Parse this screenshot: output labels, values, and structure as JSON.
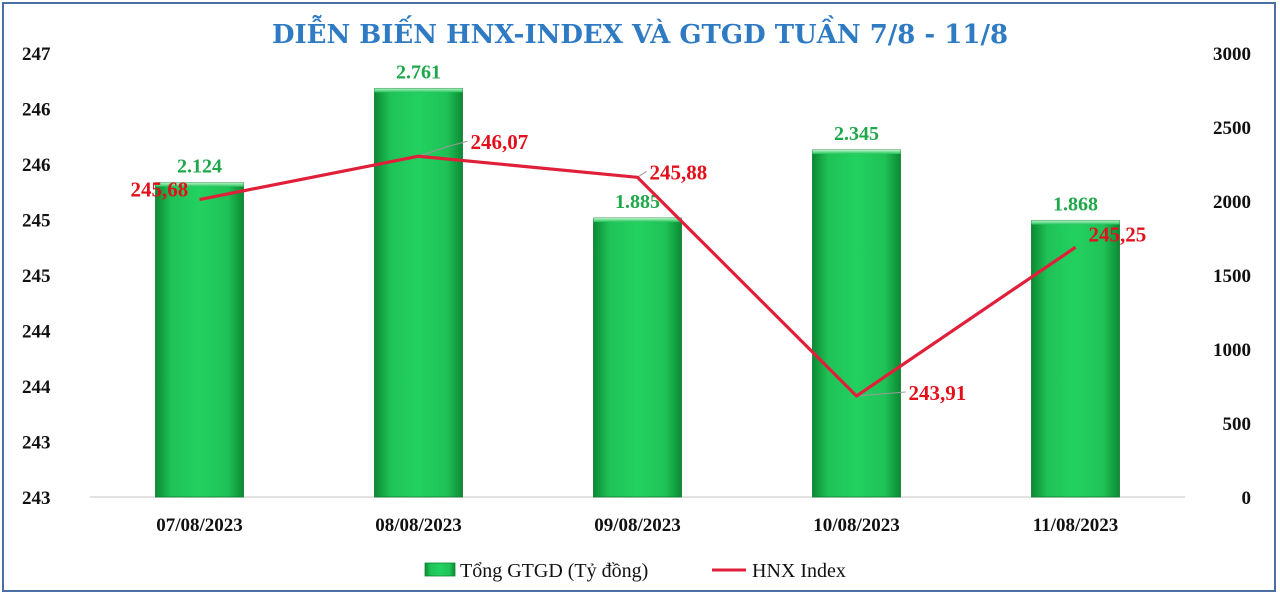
{
  "chart_data": {
    "type": "bar",
    "title": "DIỄN BIẾN HNX-INDEX VÀ GTGD TUẦN 7/8 - 11/8",
    "categories": [
      "07/08/2023",
      "08/08/2023",
      "09/08/2023",
      "10/08/2023",
      "11/08/2023"
    ],
    "series": [
      {
        "name": "Tổng GTGD (Tỷ đồng)",
        "type": "bar",
        "axis": "right",
        "values": [
          2124,
          2761,
          1885,
          2345,
          1868
        ],
        "labels": [
          "2.124",
          "2.761",
          "1.885",
          "2.345",
          "1.868"
        ],
        "color": "#1db954"
      },
      {
        "name": "HNX Index",
        "type": "line",
        "axis": "left",
        "values": [
          245.68,
          246.07,
          245.88,
          243.91,
          245.25
        ],
        "labels": [
          "245,68",
          "246,07",
          "245,88",
          "243,91",
          "245,25"
        ],
        "color": "#e0203a"
      }
    ],
    "y_left": {
      "ylim": [
        243,
        247
      ],
      "tick_labels": [
        "247",
        "246",
        "246",
        "245",
        "245",
        "244",
        "244",
        "243",
        "243"
      ]
    },
    "y_right": {
      "ylim": [
        0,
        3000
      ],
      "tick_labels": [
        "3000",
        "2500",
        "2000",
        "1500",
        "1000",
        "500",
        "0"
      ]
    },
    "legend": {
      "position": "bottom",
      "items": [
        "Tổng GTGD (Tỷ đồng)",
        "HNX Index"
      ]
    },
    "grid": false
  }
}
